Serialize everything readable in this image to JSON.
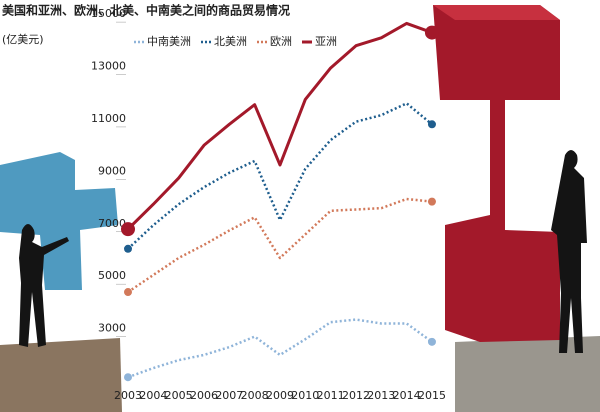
{
  "chart_data": {
    "type": "line",
    "title": "美国和亚洲、欧洲、北美、中南美之间的商品贸易情况",
    "subtitle": "(亿美元)",
    "categories": [
      "2003",
      "2004",
      "2005",
      "2006",
      "2007",
      "2008",
      "2009",
      "2010",
      "2011",
      "2012",
      "2013",
      "2014",
      "2015"
    ],
    "ylim": [
      1000,
      15500
    ],
    "yticks": [
      3000,
      5000,
      7000,
      9000,
      11000,
      13000,
      15000
    ],
    "grid": false,
    "series": [
      {
        "name": "中南美洲",
        "color": "#8fb4d9",
        "style": "dotted",
        "values": [
          1450,
          1800,
          2100,
          2300,
          2600,
          3000,
          2300,
          2900,
          3550,
          3650,
          3500,
          3500,
          2800
        ]
      },
      {
        "name": "北美洲",
        "color": "#1f5e8e",
        "style": "dotted",
        "values": [
          6350,
          7250,
          8050,
          8700,
          9250,
          9700,
          7450,
          9400,
          10500,
          11200,
          11450,
          11900,
          11100
        ]
      },
      {
        "name": "欧洲",
        "color": "#d2795a",
        "style": "dotted",
        "values": [
          4700,
          5350,
          6000,
          6500,
          7050,
          7550,
          6000,
          6900,
          7800,
          7850,
          7900,
          8250,
          8150
        ]
      },
      {
        "name": "亚洲",
        "color": "#a3192a",
        "style": "solid",
        "values": [
          7100,
          8050,
          9050,
          10300,
          11100,
          11850,
          9550,
          12050,
          13250,
          14100,
          14400,
          14950,
          14600
        ]
      }
    ]
  }
}
